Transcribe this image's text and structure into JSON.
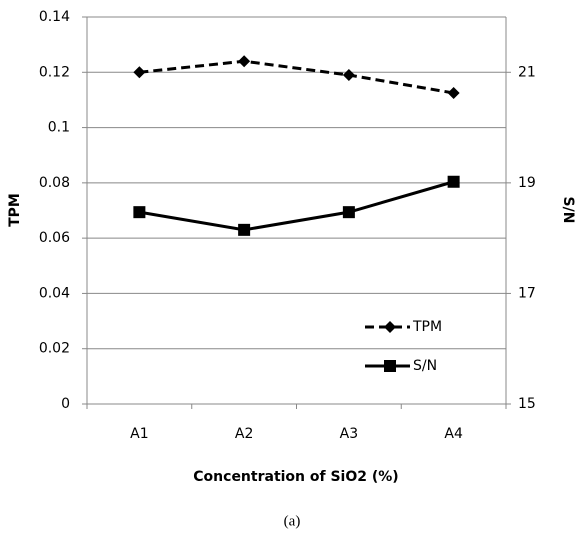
{
  "chart_data": {
    "type": "line",
    "x_label": "Concentration of SiO2 (%)",
    "y_label": "TPM",
    "y2_label": "S/N",
    "caption": "(a)",
    "categories": [
      "A1",
      "A2",
      "A3",
      "A4"
    ],
    "series": [
      {
        "name": "TPM",
        "color": "#000000",
        "dash": true,
        "marker": "diamond",
        "values": [
          0.12,
          0.124,
          0.119,
          0.1125
        ]
      },
      {
        "name": "S/N",
        "color": "#000000",
        "dash": false,
        "marker": "square",
        "axis": "y2",
        "values": [
          18.47,
          18.15,
          18.47,
          19.02
        ]
      }
    ],
    "ylim": [
      0,
      0.14
    ],
    "yticks": [
      0,
      0.02,
      0.04,
      0.06,
      0.08,
      0.1,
      0.12,
      0.14
    ],
    "y2lim": [
      15,
      22
    ],
    "y2ticks": [
      15,
      17,
      19,
      21
    ],
    "grid": true,
    "legend": "lower right"
  }
}
